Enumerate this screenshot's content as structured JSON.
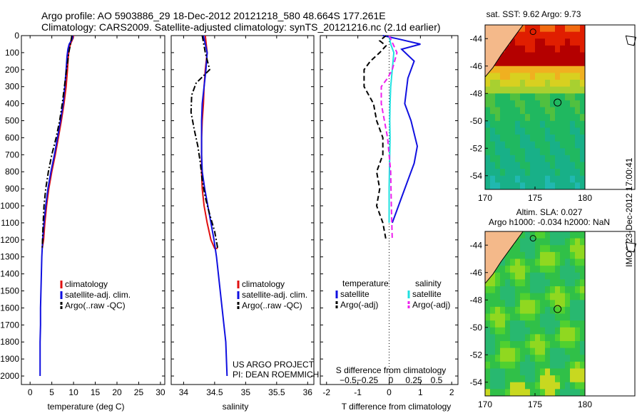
{
  "header": {
    "line1": "Argo profile: AO 5903886_29 18-Dec-2012 20121218_580 48.664S 177.261E",
    "line2": "Climatology: CARS2009. Satellite-adjusted climatology: synTS_20121216.nc (2.1d earlier)"
  },
  "side_stamp": "IMOS 23-Dec-2012 17:00:41",
  "colors": {
    "red": "#e01010",
    "blue": "#1010e0",
    "black": "#000000",
    "cyan": "#20e0e0",
    "magenta": "#ee20ee",
    "land": "#f4b98a"
  },
  "chart_data": [
    {
      "type": "line",
      "name": "temperature-profile",
      "xlabel": "temperature (deg C)",
      "ylabel": "",
      "xlim": [
        -2,
        31
      ],
      "ylim": [
        2050,
        0
      ],
      "xticks": [
        0,
        5,
        10,
        15,
        20,
        25,
        30
      ],
      "yticks": [
        0,
        100,
        200,
        300,
        400,
        500,
        600,
        700,
        800,
        900,
        1000,
        1100,
        1200,
        1300,
        1400,
        1500,
        1600,
        1700,
        1800,
        1900,
        2000
      ],
      "legend": {
        "position": "center",
        "entries": [
          "climatology",
          "satellite-adj. clim.",
          "Argo(..raw -QC)"
        ]
      },
      "series": [
        {
          "name": "climatology",
          "color": "red",
          "style": "solid",
          "x": [
            10.0,
            9.8,
            9.3,
            9.0,
            8.8,
            8.6,
            8.3,
            7.8,
            7.2,
            6.5,
            5.8,
            5.0,
            4.3,
            3.8,
            3.4,
            3.1,
            2.8
          ],
          "y": [
            0,
            20,
            50,
            80,
            120,
            200,
            300,
            400,
            500,
            600,
            700,
            800,
            900,
            1000,
            1100,
            1200,
            1250
          ]
        },
        {
          "name": "satellite-adj. clim.",
          "color": "blue",
          "style": "solid",
          "x": [
            9.8,
            9.7,
            9.0,
            8.7,
            8.5,
            8.3,
            8.0,
            7.6,
            7.0,
            6.3,
            5.6,
            4.8,
            4.1,
            3.6,
            3.2,
            2.9,
            2.7,
            2.6,
            2.5,
            2.4,
            2.4,
            2.3,
            2.3,
            2.3
          ],
          "y": [
            0,
            20,
            50,
            80,
            120,
            200,
            300,
            400,
            500,
            600,
            700,
            800,
            900,
            1000,
            1100,
            1200,
            1300,
            1400,
            1500,
            1600,
            1700,
            1800,
            1900,
            2000
          ]
        },
        {
          "name": "Argo(..raw -QC)",
          "color": "black",
          "style": "dashdot",
          "x": [
            9.6,
            9.3,
            8.9,
            8.4,
            7.9,
            7.4,
            6.8,
            6.0,
            5.0,
            4.2,
            3.6,
            3.2,
            3.0,
            2.8
          ],
          "y": [
            0,
            50,
            100,
            200,
            300,
            400,
            500,
            600,
            700,
            800,
            900,
            1000,
            1100,
            1250
          ]
        }
      ],
      "annotations": []
    },
    {
      "type": "line",
      "name": "salinity-profile",
      "xlabel": "salinity",
      "xlim": [
        33.8,
        36.1
      ],
      "ylim": [
        2050,
        0
      ],
      "xticks": [
        34,
        34.5,
        35,
        35.5,
        36
      ],
      "legend": {
        "position": "center",
        "entries": [
          "climatology",
          "satellite-adj. clim.",
          "Argo(..raw -QC)"
        ]
      },
      "series": [
        {
          "name": "climatology",
          "color": "red",
          "style": "solid",
          "x": [
            34.35,
            34.38,
            34.35,
            34.33,
            34.32,
            34.3,
            34.29,
            34.29,
            34.29,
            34.3,
            34.33,
            34.38,
            34.44,
            34.5,
            34.55
          ],
          "y": [
            0,
            100,
            200,
            300,
            400,
            500,
            600,
            700,
            800,
            900,
            1000,
            1100,
            1200,
            1250,
            1250
          ]
        },
        {
          "name": "satellite-adj. clim.",
          "color": "blue",
          "style": "solid",
          "x": [
            34.32,
            34.35,
            34.38,
            34.36,
            34.33,
            34.3,
            34.29,
            34.29,
            34.29,
            34.3,
            34.34,
            34.39,
            34.44,
            34.49,
            34.53,
            34.56,
            34.59,
            34.62,
            34.65,
            34.68,
            34.7
          ],
          "y": [
            0,
            50,
            100,
            200,
            300,
            400,
            500,
            600,
            700,
            800,
            900,
            1000,
            1100,
            1200,
            1300,
            1400,
            1500,
            1600,
            1700,
            1800,
            2000
          ]
        },
        {
          "name": "Argo(..raw -QC)",
          "color": "black",
          "style": "dashdot",
          "x": [
            34.3,
            34.35,
            34.42,
            34.2,
            34.13,
            34.12,
            34.17,
            34.23,
            34.27,
            34.3,
            34.35,
            34.42,
            34.5,
            34.55
          ],
          "y": [
            0,
            100,
            200,
            280,
            350,
            450,
            550,
            650,
            750,
            850,
            950,
            1050,
            1150,
            1250
          ]
        }
      ],
      "annotations": [
        "US ARGO PROJECT",
        "PI: DEAN ROEMMICH"
      ]
    },
    {
      "type": "line",
      "name": "difference-profile",
      "xlabel": "T difference from climatology",
      "x2label": "S difference from climatology",
      "xlim": [
        -2.2,
        2.2
      ],
      "ylim": [
        2050,
        0
      ],
      "xticks": [
        -2,
        -1,
        0,
        1,
        2
      ],
      "x2ticks": [
        -0.5,
        -0.25,
        0,
        0.25,
        0.5
      ],
      "x2labels": [
        "−0.5",
        "−0.25",
        "0",
        "0.25",
        "0.5"
      ],
      "legend": {
        "position": "lower",
        "headers": [
          "temperature",
          "salinity"
        ],
        "entries": [
          "satellite",
          "Argo(-adj)",
          "satellite",
          "Argo(-adj)"
        ]
      },
      "series": [
        {
          "name": "T satellite",
          "color": "blue",
          "style": "solid",
          "x": [
            -0.2,
            0.3,
            1.0,
            0.4,
            0.8,
            0.6,
            0.5,
            0.7,
            0.9,
            0.8,
            0.6,
            0.4,
            0.2,
            0.1
          ],
          "y": [
            0,
            20,
            50,
            80,
            150,
            250,
            400,
            500,
            650,
            750,
            850,
            950,
            1050,
            1100
          ]
        },
        {
          "name": "T Argo(-adj)",
          "color": "black",
          "style": "dashed",
          "x": [
            -0.1,
            -0.3,
            -0.1,
            -0.3,
            -0.6,
            -0.8,
            -0.8,
            -0.5,
            -0.4,
            -0.2,
            -0.2,
            -0.4,
            -0.3,
            -0.4,
            -0.2,
            -0.1
          ],
          "y": [
            0,
            30,
            60,
            100,
            150,
            200,
            300,
            400,
            500,
            600,
            700,
            800,
            900,
            1000,
            1100,
            1200
          ]
        },
        {
          "name": "S satellite",
          "color": "cyan",
          "style": "solid",
          "x": [
            0.0,
            0.05,
            0.15,
            0.1,
            0.05,
            0.03,
            0.02,
            0.03,
            0.02,
            0.01,
            0.0,
            0.0,
            0.0
          ],
          "y": [
            0,
            50,
            100,
            200,
            300,
            400,
            500,
            600,
            700,
            800,
            900,
            1000,
            1100
          ]
        },
        {
          "name": "S Argo(-adj)",
          "color": "magenta",
          "style": "dashed",
          "x": [
            0.0,
            0.25,
            0.1,
            -0.05,
            -0.25,
            -0.25,
            -0.15,
            -0.05,
            0.0,
            0.05,
            0.07,
            0.1
          ],
          "y": [
            0,
            100,
            200,
            250,
            300,
            400,
            500,
            600,
            700,
            800,
            1000,
            1200
          ]
        }
      ]
    },
    {
      "type": "heatmap",
      "name": "sst-map",
      "title": "sat. SST: 9.62 Argo: 9.73",
      "xlim": [
        170,
        185
      ],
      "ylim": [
        -55,
        -43
      ],
      "xticks": [
        170,
        175,
        180
      ],
      "yticks": [
        -44,
        -46,
        -48,
        -50,
        -52,
        -54
      ],
      "marker": {
        "lon": 177.261,
        "lat": -48.664
      }
    },
    {
      "type": "heatmap",
      "name": "sla-map",
      "title": "Altim. SLA: 0.027",
      "subtitle": "Argo h1000: -0.034 h2000: NaN",
      "xlim": [
        170,
        185
      ],
      "ylim": [
        -55,
        -43
      ],
      "xticks": [
        170,
        175,
        180
      ],
      "yticks": [
        -44,
        -46,
        -48,
        -50,
        -52,
        -54
      ],
      "marker": {
        "lon": 177.261,
        "lat": -48.664
      }
    }
  ]
}
